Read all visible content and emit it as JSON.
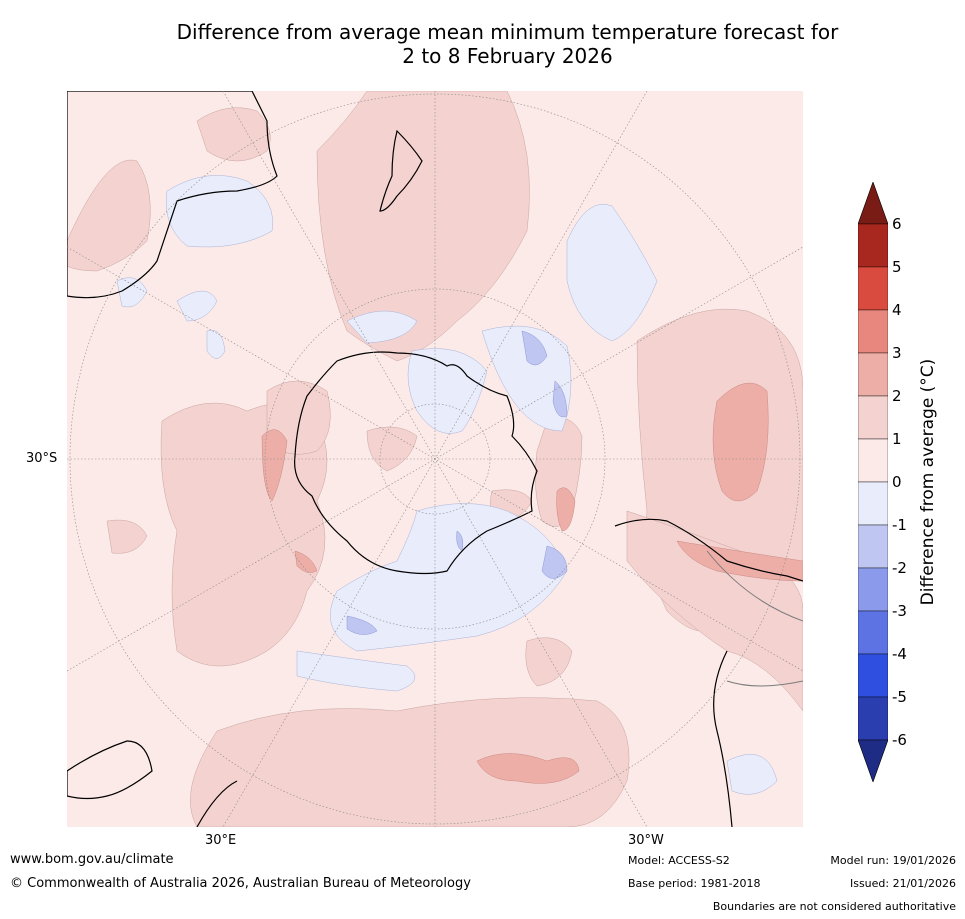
{
  "title": {
    "line1": "Difference from average mean minimum temperature forecast for",
    "line2": "2 to 8 February 2026"
  },
  "map": {
    "projection": "south-polar-stereographic",
    "lat_label": "30°S",
    "lon_labels": [
      "30°E",
      "30°W"
    ],
    "land_color": "#000000",
    "graticule_color": "#8a8a8a"
  },
  "colorbar": {
    "title": "Difference from average (°C)",
    "ticks": [
      "6",
      "5",
      "4",
      "3",
      "2",
      "1",
      "0",
      "-1",
      "-2",
      "-3",
      "-4",
      "-5",
      "-6"
    ],
    "colors": [
      "#7a1c16",
      "#a8271f",
      "#d94b3f",
      "#e8877e",
      "#edaea8",
      "#f4d2cf",
      "#fbeae8",
      "#e8ecfb",
      "#bfc6f2",
      "#8c9aec",
      "#5e73e3",
      "#2f4fe0",
      "#2a3eb0",
      "#1f2c85"
    ]
  },
  "footer": {
    "website": "www.bom.gov.au/climate",
    "copyright": "© Commonwealth of Australia 2026, Australian Bureau of Meteorology",
    "model": "Model: ACCESS-S2",
    "base_period": "Base period: 1981-2018",
    "model_run": "Model run: 19/01/2026",
    "issued": "Issued: 21/01/2026",
    "disclaimer": "Boundaries are not considered authoritative"
  }
}
